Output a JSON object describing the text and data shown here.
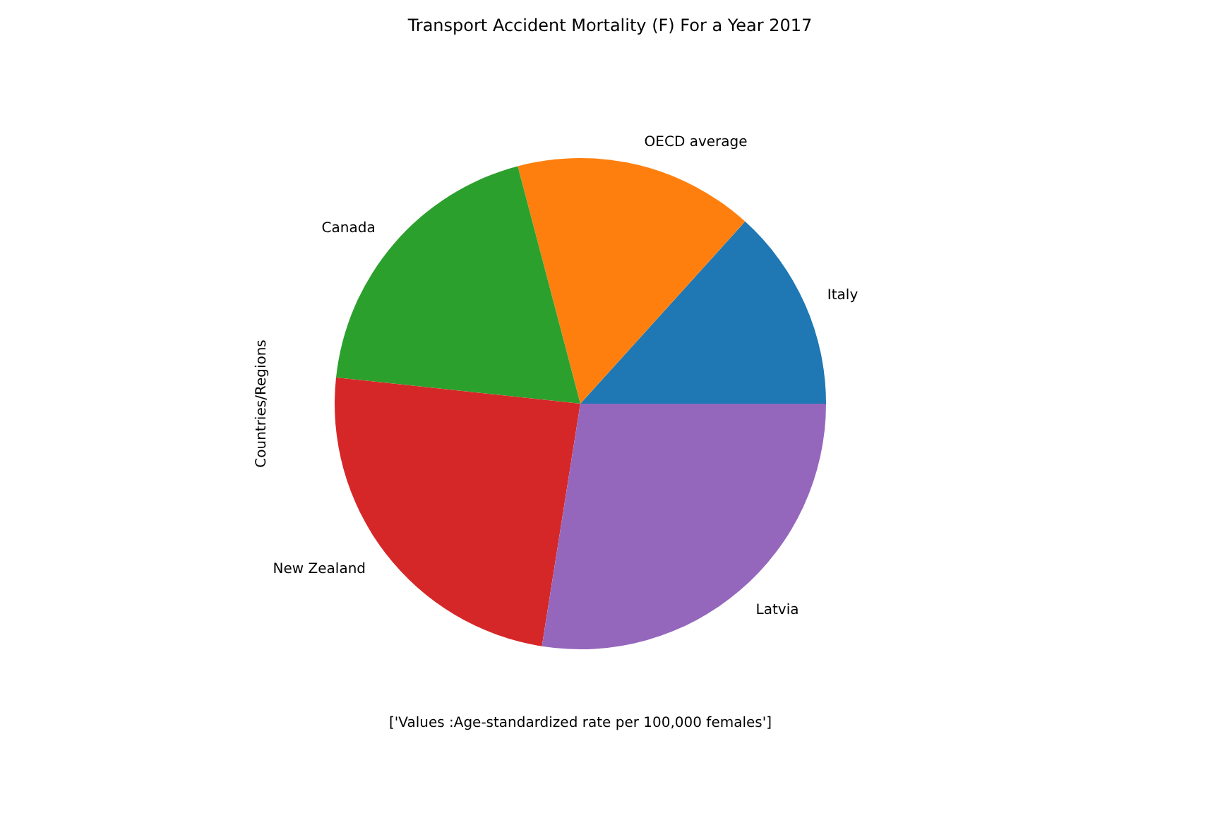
{
  "chart_data": {
    "type": "pie",
    "title": "Transport Accident Mortality (F) For a Year 2017",
    "xlabel": "['Values :Age-standardized rate per 100,000 females']",
    "ylabel": "Countries/Regions",
    "categories": [
      "Italy",
      "OECD average",
      "Canada",
      "New Zealand",
      "Latvia"
    ],
    "values": [
      13.3,
      15.8,
      19.2,
      24.2,
      27.5
    ],
    "colors": [
      "#1f77b4",
      "#ff7f0e",
      "#2ca02c",
      "#d62728",
      "#9467bd"
    ]
  }
}
